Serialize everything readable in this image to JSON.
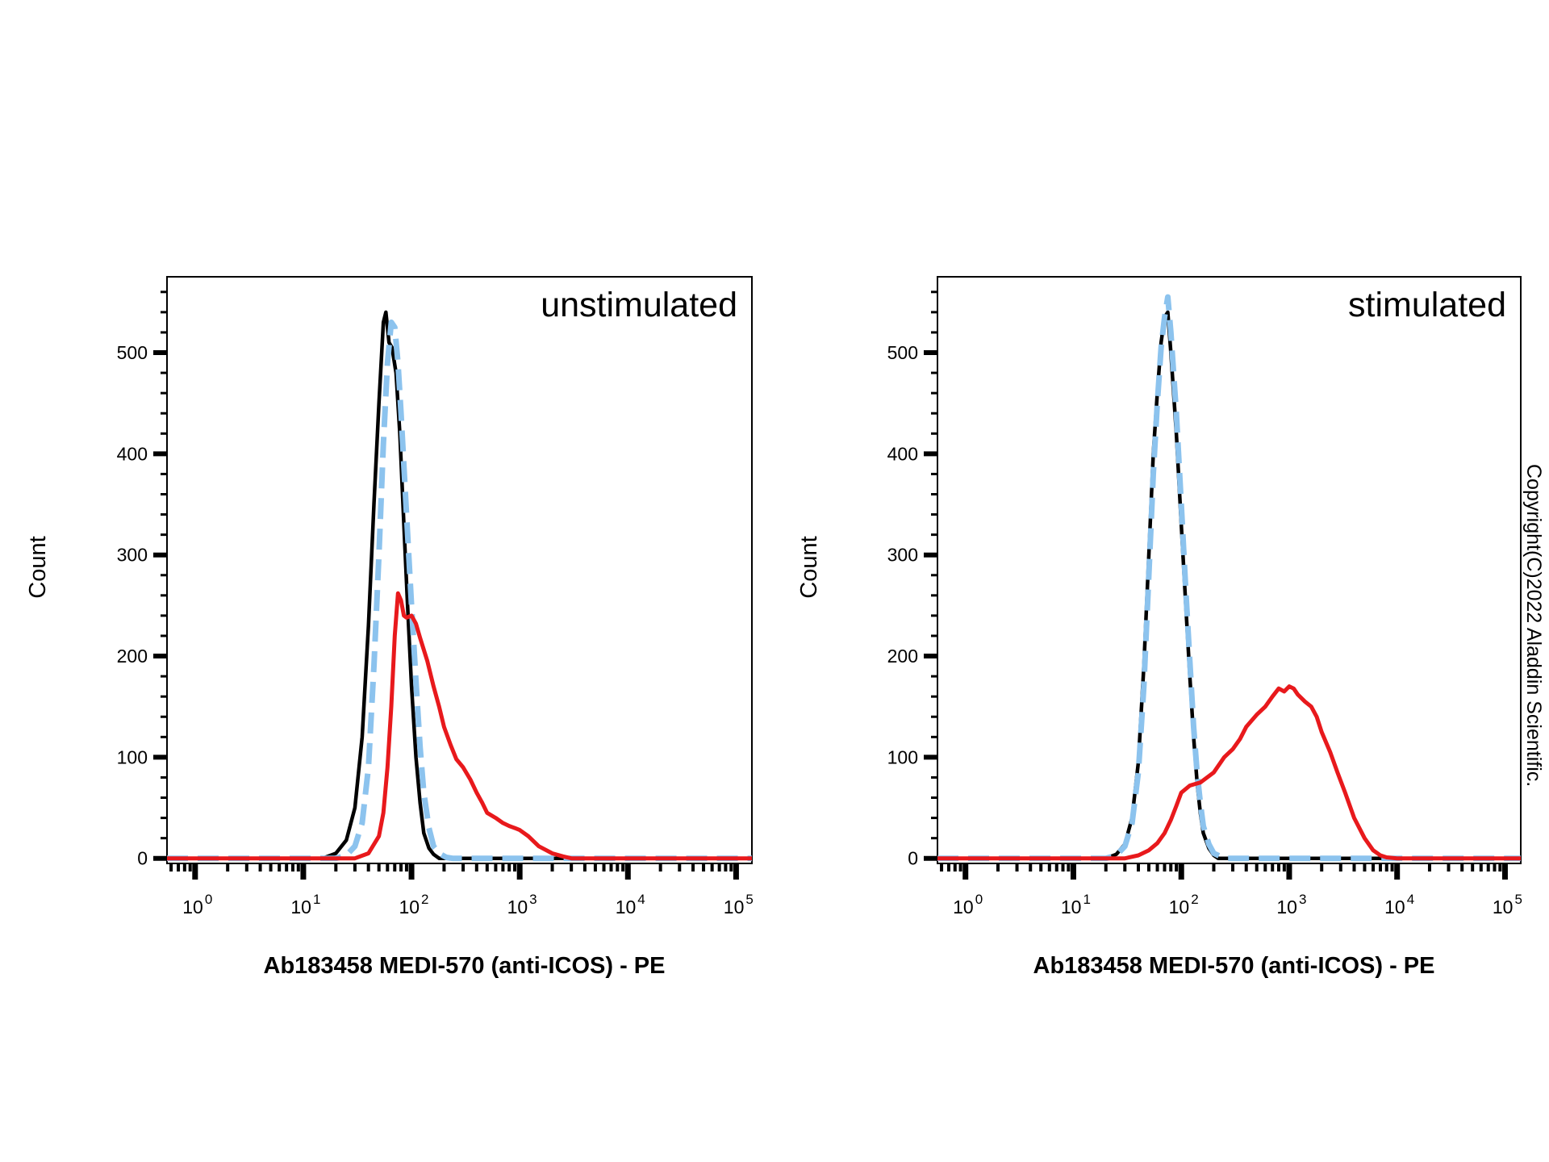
{
  "copyright": "Copyright(C)2022 Aladdin Scientific.",
  "chart_data": [
    {
      "type": "line",
      "title": "unstimulated",
      "xlabel": "Ab183458 MEDI-570 (anti-ICOS) - PE",
      "ylabel": "Count",
      "xscale": "log",
      "xlim": [
        0.55,
        140000
      ],
      "ylim": [
        -5,
        575
      ],
      "x_tick_labels": [
        {
          "base": "10",
          "exp": "0",
          "value": 1
        },
        {
          "base": "10",
          "exp": "1",
          "value": 10
        },
        {
          "base": "10",
          "exp": "2",
          "value": 100
        },
        {
          "base": "10",
          "exp": "3",
          "value": 1000
        },
        {
          "base": "10",
          "exp": "4",
          "value": 10000
        },
        {
          "base": "10",
          "exp": "5",
          "value": 100000
        }
      ],
      "y_ticks": [
        0,
        100,
        200,
        300,
        400,
        500
      ],
      "grid": false,
      "colors": {
        "black": "#000000",
        "blue_dashed": "#8cc3ee",
        "red": "#e8191c"
      },
      "series": [
        {
          "color": "#000000",
          "style": "solid",
          "x": [
            0.55,
            15,
            20,
            25,
            30,
            35,
            40,
            45,
            50,
            55,
            58,
            62,
            66,
            72,
            78,
            85,
            92,
            100,
            110,
            120,
            130,
            145,
            160,
            180,
            200,
            140000
          ],
          "y": [
            0,
            0,
            5,
            18,
            50,
            120,
            230,
            350,
            450,
            530,
            540,
            510,
            505,
            480,
            420,
            330,
            250,
            170,
            100,
            55,
            25,
            10,
            4,
            0,
            0,
            0
          ]
        },
        {
          "color": "#8cc3ee",
          "style": "dashed",
          "x": [
            0.55,
            20,
            25,
            30,
            35,
            40,
            45,
            50,
            55,
            60,
            65,
            70,
            75,
            80,
            90,
            100,
            110,
            120,
            130,
            145,
            160,
            180,
            210,
            240,
            270,
            140000
          ],
          "y": [
            0,
            0,
            3,
            12,
            35,
            90,
            190,
            300,
            410,
            490,
            530,
            525,
            490,
            440,
            340,
            250,
            175,
            110,
            65,
            30,
            12,
            5,
            1,
            0,
            0,
            0
          ]
        },
        {
          "color": "#e8191c",
          "style": "solid",
          "x": [
            0.55,
            30,
            40,
            50,
            55,
            60,
            65,
            70,
            75,
            80,
            85,
            90,
            100,
            110,
            120,
            140,
            160,
            180,
            200,
            230,
            260,
            300,
            350,
            400,
            450,
            500,
            600,
            700,
            800,
            900,
            1000,
            1200,
            1500,
            2000,
            2500,
            3000,
            140000
          ],
          "y": [
            0,
            0,
            5,
            22,
            45,
            90,
            150,
            220,
            262,
            255,
            240,
            238,
            240,
            232,
            218,
            195,
            170,
            150,
            130,
            112,
            98,
            90,
            78,
            65,
            55,
            45,
            40,
            35,
            32,
            30,
            28,
            22,
            12,
            5,
            2,
            0,
            0
          ]
        }
      ]
    },
    {
      "type": "line",
      "title": "stimulated",
      "xlabel": "Ab183458 MEDI-570 (anti-ICOS) - PE",
      "ylabel": "Count",
      "xscale": "log",
      "xlim": [
        0.55,
        140000
      ],
      "ylim": [
        -5,
        575
      ],
      "x_tick_labels": [
        {
          "base": "10",
          "exp": "0",
          "value": 1
        },
        {
          "base": "10",
          "exp": "1",
          "value": 10
        },
        {
          "base": "10",
          "exp": "2",
          "value": 100
        },
        {
          "base": "10",
          "exp": "3",
          "value": 1000
        },
        {
          "base": "10",
          "exp": "4",
          "value": 10000
        },
        {
          "base": "10",
          "exp": "5",
          "value": 100000
        }
      ],
      "y_ticks": [
        0,
        100,
        200,
        300,
        400,
        500
      ],
      "grid": false,
      "colors": {
        "black": "#000000",
        "blue_dashed": "#8cc3ee",
        "red": "#e8191c"
      },
      "series": [
        {
          "color": "#000000",
          "style": "solid",
          "x": [
            0.55,
            20,
            25,
            30,
            35,
            40,
            45,
            50,
            55,
            60,
            65,
            70,
            75,
            80,
            90,
            100,
            110,
            120,
            130,
            140,
            150,
            160,
            180,
            200,
            220,
            140000
          ],
          "y": [
            0,
            0,
            4,
            14,
            40,
            95,
            190,
            300,
            400,
            460,
            510,
            535,
            540,
            500,
            420,
            330,
            250,
            180,
            120,
            75,
            45,
            25,
            10,
            3,
            0,
            0
          ]
        },
        {
          "color": "#8cc3ee",
          "style": "dashed",
          "x": [
            0.55,
            20,
            25,
            30,
            35,
            40,
            45,
            50,
            55,
            60,
            65,
            70,
            75,
            80,
            90,
            100,
            110,
            120,
            130,
            140,
            150,
            160,
            180,
            200,
            230,
            260,
            140000
          ],
          "y": [
            0,
            0,
            3,
            12,
            35,
            85,
            170,
            280,
            380,
            450,
            505,
            535,
            555,
            520,
            440,
            350,
            265,
            195,
            130,
            85,
            55,
            32,
            14,
            5,
            2,
            0,
            0
          ]
        },
        {
          "color": "#e8191c",
          "style": "solid",
          "x": [
            0.55,
            30,
            40,
            50,
            60,
            70,
            80,
            90,
            100,
            120,
            150,
            200,
            250,
            300,
            350,
            400,
            500,
            600,
            700,
            800,
            900,
            1000,
            1100,
            1200,
            1400,
            1600,
            1800,
            2000,
            2400,
            2800,
            3300,
            4000,
            5000,
            6000,
            7000,
            8000,
            10000,
            140000
          ],
          "y": [
            0,
            0,
            3,
            8,
            15,
            25,
            38,
            52,
            65,
            72,
            75,
            85,
            100,
            108,
            118,
            130,
            142,
            150,
            160,
            168,
            165,
            170,
            168,
            162,
            155,
            150,
            140,
            125,
            105,
            85,
            65,
            40,
            20,
            8,
            3,
            1,
            0,
            0
          ]
        }
      ]
    }
  ]
}
